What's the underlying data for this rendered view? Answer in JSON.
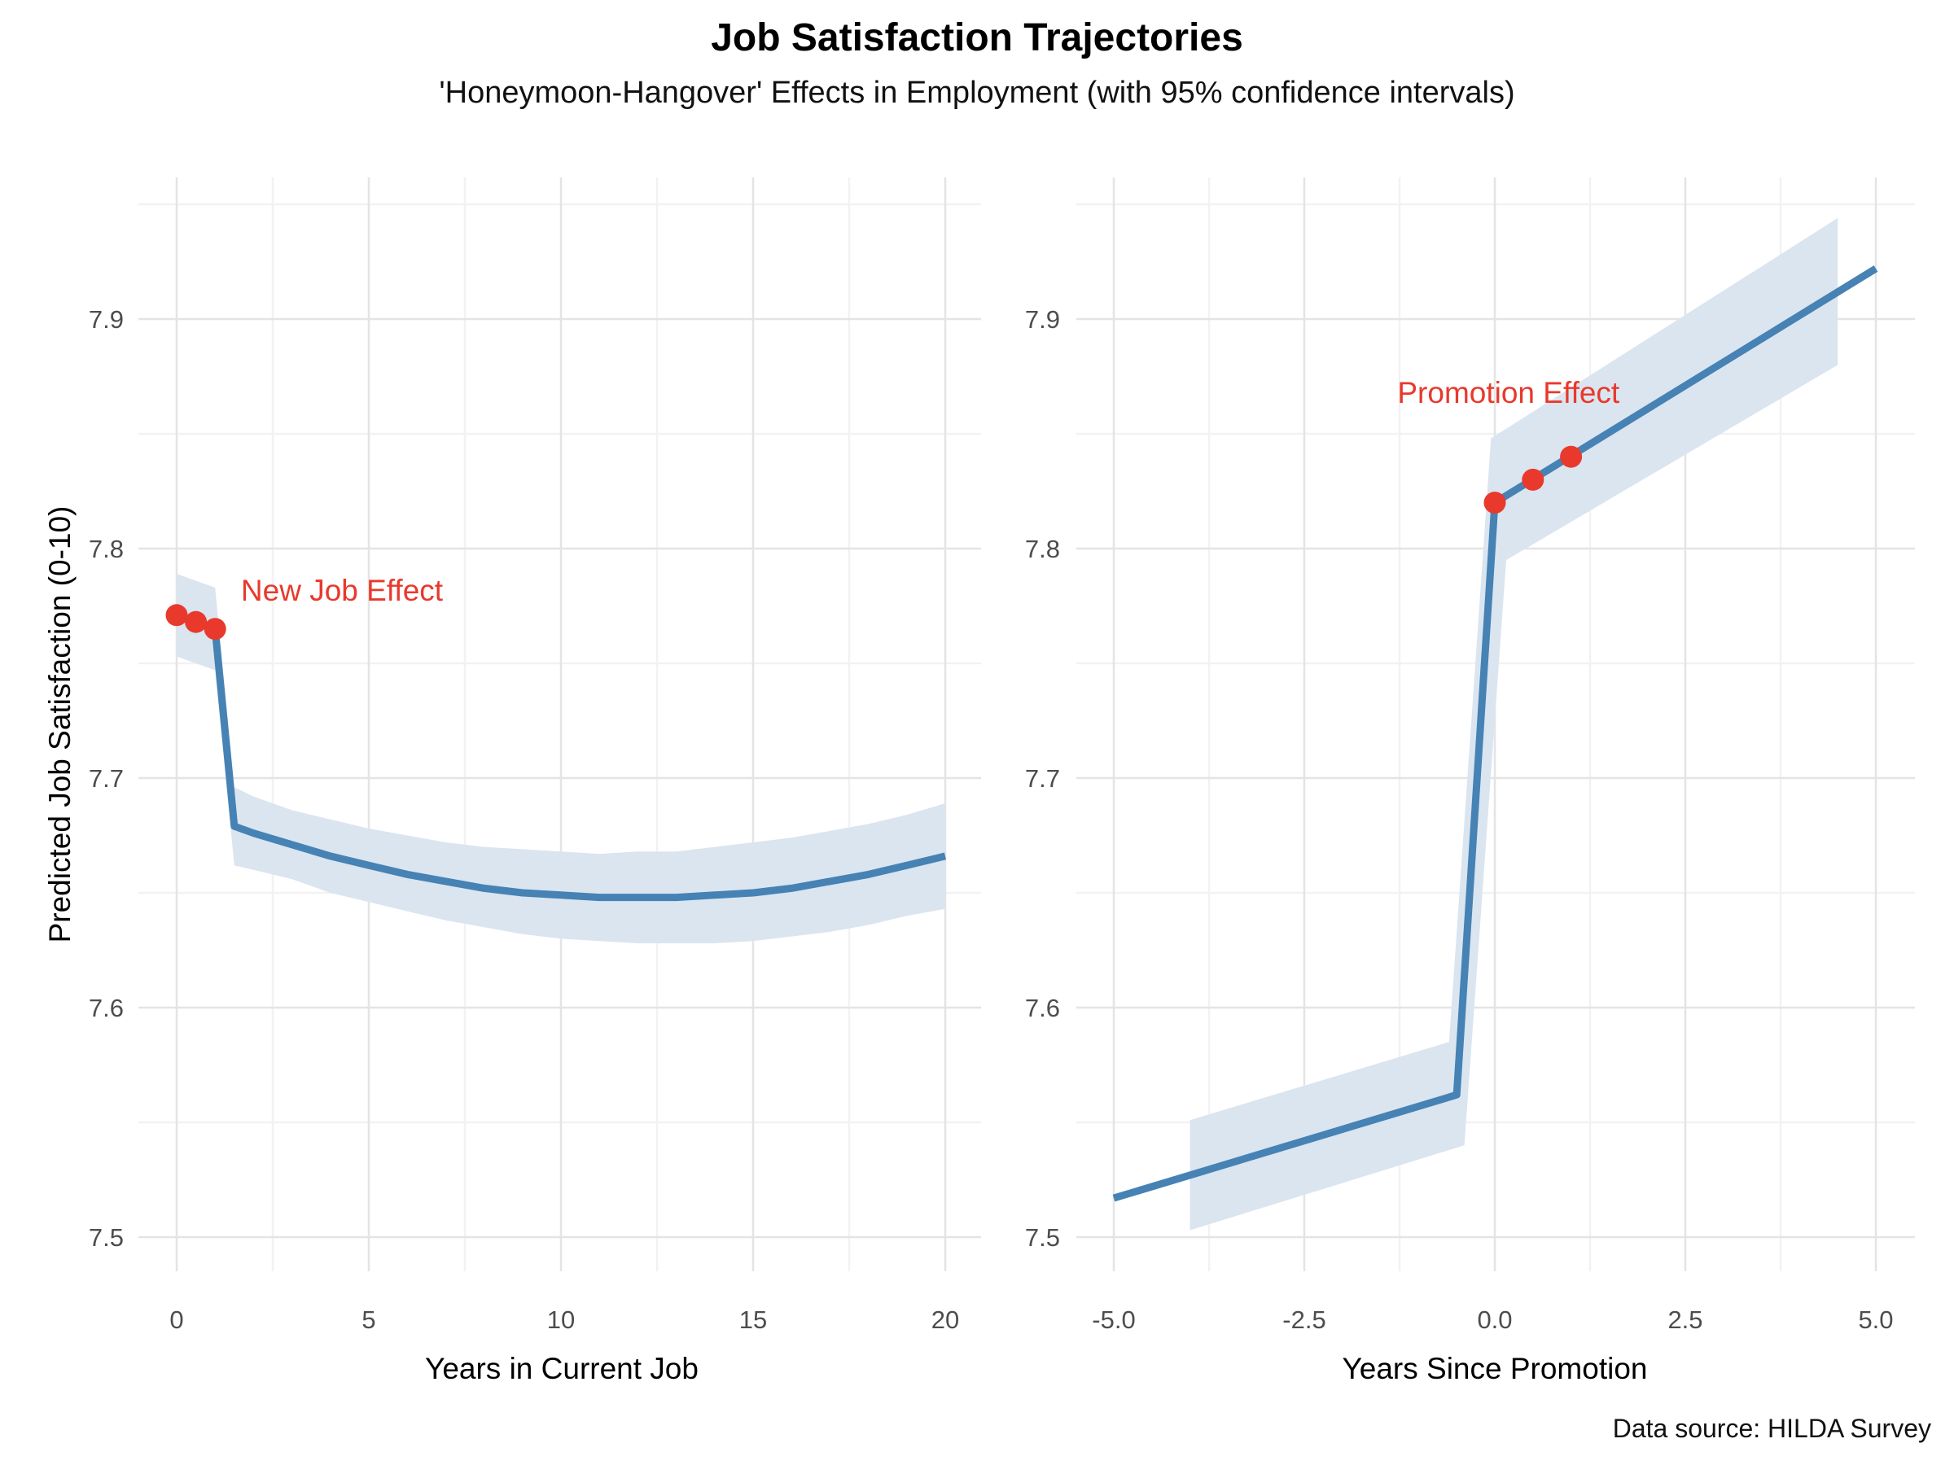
{
  "chart_data": {
    "type": "line",
    "title": "Job Satisfaction Trajectories",
    "subtitle": "'Honeymoon-Hangover' Effects in Employment (with 95% confidence intervals)",
    "caption": "Data source: HILDA Survey",
    "ylabel": "Predicted Job Satisfaction (0-10)",
    "grid": "on",
    "legend_position": "none",
    "y_axis": {
      "ticks": [
        7.5,
        7.6,
        7.7,
        7.8,
        7.9
      ],
      "tick_labels": [
        "7.5",
        "7.6",
        "7.7",
        "7.8",
        "7.9"
      ],
      "minor_ticks": [
        7.55,
        7.65,
        7.75,
        7.85,
        7.95
      ],
      "ylim": [
        7.485,
        7.962
      ]
    },
    "panels": [
      {
        "id": "tenure",
        "xlabel": "Years in Current Job",
        "x_ticks": {
          "values": [
            0,
            5,
            10,
            15,
            20
          ],
          "labels": [
            "0",
            "5",
            "10",
            "15",
            "20"
          ]
        },
        "x_minor": [
          2.5,
          7.5,
          12.5,
          17.5
        ],
        "xlim": [
          -1,
          21
        ],
        "line": {
          "x": [
            0,
            0.5,
            1,
            1.5,
            2,
            3,
            4,
            5,
            6,
            7,
            8,
            9,
            10,
            11,
            12,
            13,
            14,
            15,
            16,
            17,
            18,
            19,
            20
          ],
          "y": [
            7.771,
            7.768,
            7.765,
            7.679,
            7.676,
            7.671,
            7.666,
            7.662,
            7.658,
            7.655,
            7.652,
            7.65,
            7.649,
            7.648,
            7.648,
            7.648,
            7.649,
            7.65,
            7.652,
            7.655,
            7.658,
            7.662,
            7.666
          ]
        },
        "ribbon": {
          "upper_x": [
            0,
            0.5,
            1,
            1.5,
            2,
            3,
            4,
            5,
            6,
            7,
            8,
            9,
            10,
            11,
            12,
            13,
            14,
            15,
            16,
            17,
            18,
            19,
            20
          ],
          "upper_y": [
            7.789,
            7.786,
            7.783,
            7.696,
            7.692,
            7.686,
            7.682,
            7.678,
            7.675,
            7.672,
            7.67,
            7.669,
            7.668,
            7.667,
            7.668,
            7.668,
            7.67,
            7.672,
            7.674,
            7.677,
            7.68,
            7.684,
            7.689
          ],
          "lower_x": [
            0,
            0.5,
            1,
            1.5,
            2,
            3,
            4,
            5,
            6,
            7,
            8,
            9,
            10,
            11,
            12,
            13,
            14,
            15,
            16,
            17,
            18,
            19,
            20
          ],
          "lower_y": [
            7.753,
            7.75,
            7.747,
            7.662,
            7.66,
            7.656,
            7.65,
            7.646,
            7.642,
            7.638,
            7.635,
            7.632,
            7.63,
            7.629,
            7.628,
            7.628,
            7.628,
            7.629,
            7.631,
            7.633,
            7.636,
            7.64,
            7.643
          ]
        },
        "points": {
          "x": [
            0,
            0.5,
            1
          ],
          "y": [
            7.771,
            7.768,
            7.765
          ]
        },
        "annotation": {
          "text": "New Job Effect",
          "x": 4.3,
          "y": 7.782
        }
      },
      {
        "id": "promotion",
        "xlabel": "Years Since Promotion",
        "x_ticks": {
          "values": [
            -5,
            -2.5,
            0,
            2.5,
            5
          ],
          "labels": [
            "-5.0",
            "-2.5",
            "0.0",
            "2.5",
            "5.0"
          ]
        },
        "x_minor": [
          -3.75,
          -1.25,
          1.25,
          3.75
        ],
        "xlim": [
          -5.5,
          5.5
        ],
        "line": {
          "x": [
            -5,
            -0.5,
            0,
            5
          ],
          "y": [
            7.517,
            7.562,
            7.82,
            7.922
          ]
        },
        "ribbon": {
          "upper_x": [
            -4,
            -0.6,
            -0.05,
            4.5
          ],
          "upper_y": [
            7.551,
            7.585,
            7.848,
            7.944
          ],
          "lower_x": [
            -4,
            -0.4,
            0.15,
            4.5
          ],
          "lower_y": [
            7.503,
            7.54,
            7.795,
            7.88
          ]
        },
        "points": {
          "x": [
            0,
            0.5,
            1
          ],
          "y": [
            7.82,
            7.83,
            7.84
          ]
        },
        "annotation": {
          "text": "Promotion Effect",
          "x": 0.18,
          "y": 7.868
        }
      }
    ]
  },
  "colors": {
    "line": "#4682B4",
    "ribbon": "#DAE5F0",
    "point": "#E8392C",
    "annotation": "#E8392C",
    "grid_major": "#E4E4E4",
    "grid_minor": "#F2F2F2",
    "axis_text": "#4D4D4D",
    "title_text": "#000000",
    "background": "#FFFFFF"
  }
}
